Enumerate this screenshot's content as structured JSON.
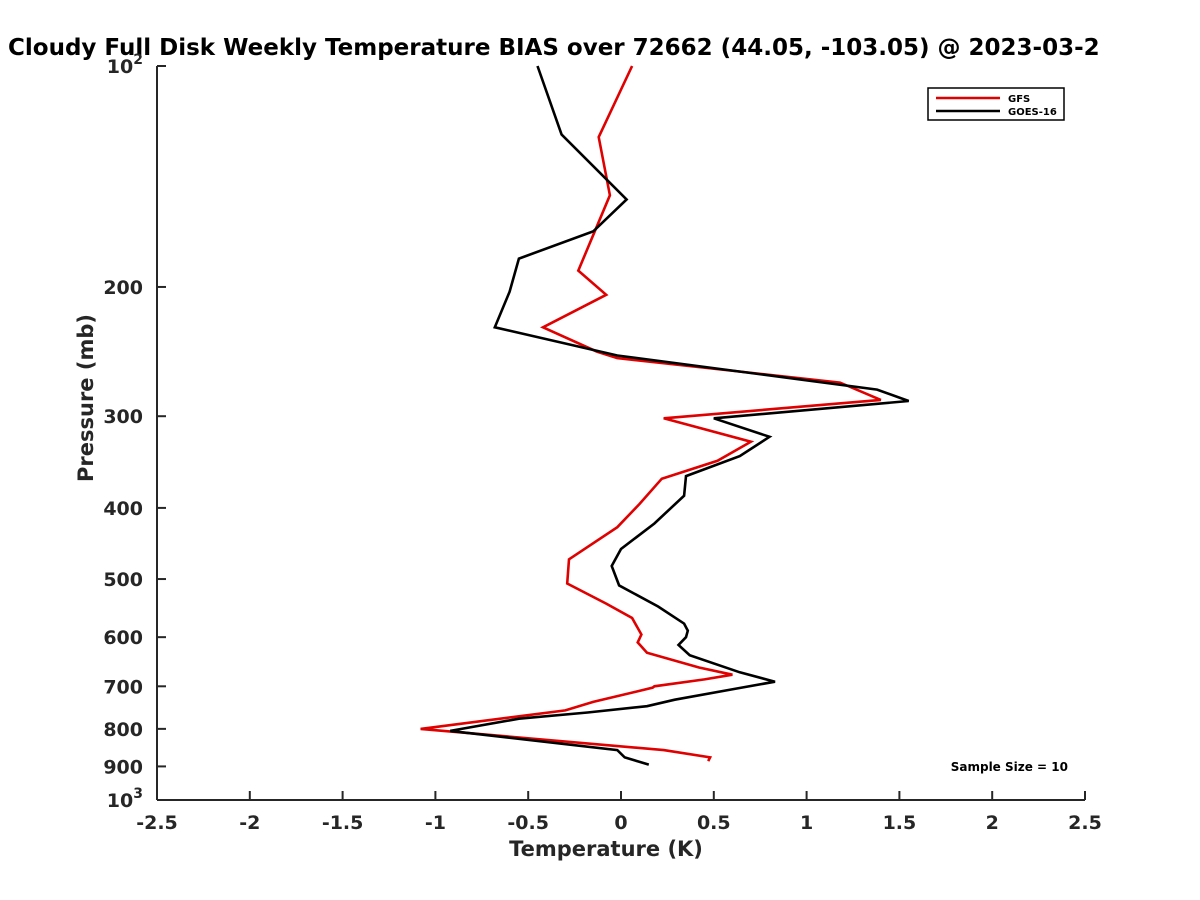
{
  "chart_data": {
    "type": "line",
    "title": "Cloudy Full Disk Weekly Temperature BIAS over 72662 (44.05, -103.05) @ 2023-03-2",
    "xlabel": "Temperature (K)",
    "ylabel": "Pressure (mb)",
    "xlim": [
      -2.5,
      2.5
    ],
    "ylim": [
      1000,
      100
    ],
    "y_scale": "log",
    "x_ticks": [
      "-2.5",
      "-2",
      "-1.5",
      "-1",
      "-0.5",
      "0",
      "0.5",
      "1",
      "1.5",
      "2",
      "2.5"
    ],
    "y_ticks": [
      {
        "value": 100,
        "base": "10",
        "exp": "2"
      },
      {
        "value": 200,
        "label": "200"
      },
      {
        "value": 300,
        "label": "300"
      },
      {
        "value": 400,
        "label": "400"
      },
      {
        "value": 500,
        "label": "500"
      },
      {
        "value": 600,
        "label": "600"
      },
      {
        "value": 700,
        "label": "700"
      },
      {
        "value": 800,
        "label": "800"
      },
      {
        "value": 900,
        "label": "900"
      },
      {
        "value": 1000,
        "base": "10",
        "exp": "3"
      }
    ],
    "grid": false,
    "legend_position": "top-right",
    "annotation": "Sample Size = 10",
    "series": [
      {
        "name": "GFS",
        "color": "#e00000",
        "points": [
          [
            0.06,
            100
          ],
          [
            -0.12,
            125
          ],
          [
            -0.06,
            150
          ],
          [
            -0.23,
            190
          ],
          [
            -0.08,
            205
          ],
          [
            -0.42,
            227
          ],
          [
            -0.13,
            245
          ],
          [
            -0.02,
            250
          ],
          [
            1.18,
            270
          ],
          [
            1.4,
            285
          ],
          [
            0.23,
            302
          ],
          [
            0.7,
            325
          ],
          [
            0.52,
            345
          ],
          [
            0.22,
            365
          ],
          [
            0.1,
            395
          ],
          [
            -0.02,
            425
          ],
          [
            -0.28,
            470
          ],
          [
            -0.29,
            507
          ],
          [
            -0.08,
            540
          ],
          [
            0.06,
            565
          ],
          [
            0.11,
            595
          ],
          [
            0.09,
            610
          ],
          [
            0.14,
            630
          ],
          [
            0.42,
            660
          ],
          [
            0.6,
            675
          ],
          [
            0.45,
            685
          ],
          [
            0.18,
            700
          ],
          [
            0.17,
            703
          ],
          [
            -0.15,
            735
          ],
          [
            -0.3,
            755
          ],
          [
            -1.08,
            800
          ],
          [
            0.23,
            855
          ],
          [
            0.48,
            875
          ],
          [
            0.47,
            885
          ]
        ]
      },
      {
        "name": "GOES-16",
        "color": "#000000",
        "points": [
          [
            -0.45,
            100
          ],
          [
            -0.32,
            124
          ],
          [
            0.03,
            152
          ],
          [
            -0.15,
            168
          ],
          [
            -0.55,
            183
          ],
          [
            -0.6,
            203
          ],
          [
            -0.68,
            227
          ],
          [
            -0.02,
            248
          ],
          [
            1.38,
            276
          ],
          [
            1.55,
            286
          ],
          [
            0.5,
            302
          ],
          [
            0.8,
            320
          ],
          [
            0.64,
            340
          ],
          [
            0.35,
            362
          ],
          [
            0.34,
            385
          ],
          [
            0.18,
            420
          ],
          [
            0.0,
            455
          ],
          [
            -0.05,
            480
          ],
          [
            -0.01,
            510
          ],
          [
            0.2,
            545
          ],
          [
            0.34,
            575
          ],
          [
            0.36,
            588
          ],
          [
            0.35,
            600
          ],
          [
            0.31,
            615
          ],
          [
            0.37,
            635
          ],
          [
            0.64,
            670
          ],
          [
            0.83,
            690
          ],
          [
            0.62,
            705
          ],
          [
            0.29,
            730
          ],
          [
            0.14,
            745
          ],
          [
            -0.18,
            760
          ],
          [
            -0.55,
            775
          ],
          [
            -0.92,
            805
          ],
          [
            -0.02,
            855
          ],
          [
            0.02,
            875
          ],
          [
            0.15,
            895
          ]
        ]
      }
    ]
  }
}
